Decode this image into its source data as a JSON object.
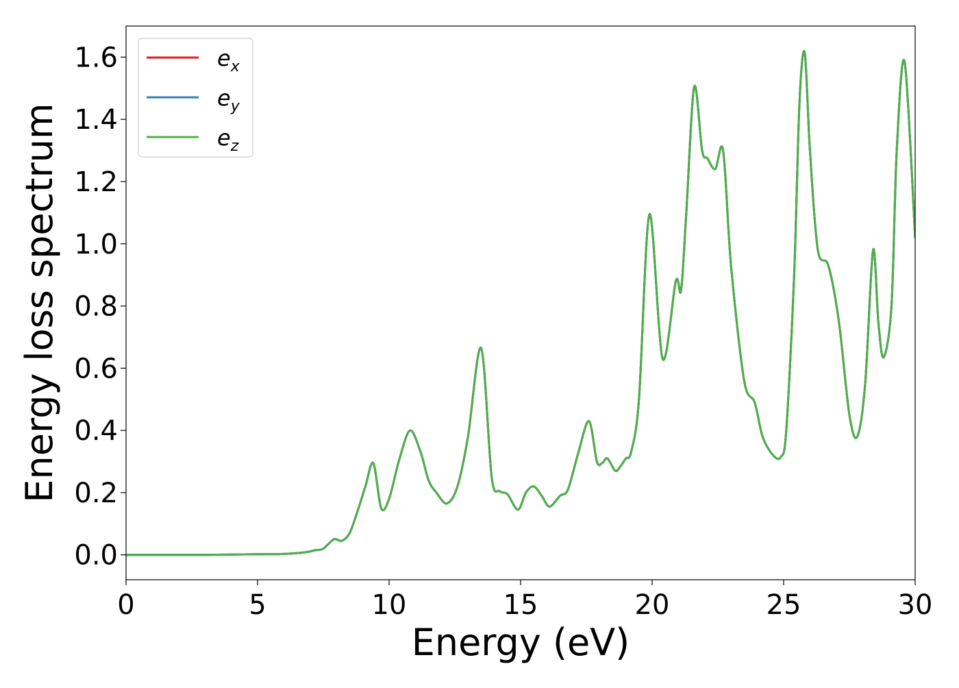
{
  "chart_data": {
    "type": "line",
    "title": "",
    "xlabel": "Energy (eV)",
    "ylabel": "Energy loss spectrum",
    "xlim": [
      0,
      30
    ],
    "ylim": [
      -0.08,
      1.7
    ],
    "xticks": [
      0,
      5,
      10,
      15,
      20,
      25,
      30
    ],
    "xtick_labels": [
      "0",
      "5",
      "10",
      "15",
      "20",
      "25",
      "30"
    ],
    "yticks": [
      0.0,
      0.2,
      0.4,
      0.6,
      0.8,
      1.0,
      1.2,
      1.4,
      1.6
    ],
    "ytick_labels": [
      "0.0",
      "0.2",
      "0.4",
      "0.6",
      "0.8",
      "1.0",
      "1.2",
      "1.4",
      "1.6"
    ],
    "grid": false,
    "legend_position": "top-left",
    "series": [
      {
        "name": "e_x",
        "legend_base": "e",
        "legend_sub": "x",
        "color": "#e41a1c",
        "x": [
          0,
          3,
          5,
          6,
          6.8,
          7.2,
          7.5,
          7.9,
          8.2,
          8.5,
          8.8,
          9.1,
          9.4,
          9.7,
          10.0,
          10.4,
          10.8,
          11.2,
          11.5,
          11.8,
          12.2,
          12.6,
          13.0,
          13.5,
          13.9,
          14.2,
          14.5,
          14.9,
          15.2,
          15.5,
          15.8,
          16.1,
          16.5,
          16.8,
          17.2,
          17.6,
          17.9,
          18.1,
          18.3,
          18.6,
          18.8,
          19.0,
          19.2,
          19.5,
          19.9,
          20.4,
          20.9,
          21.1,
          21.3,
          21.6,
          21.9,
          22.1,
          22.4,
          22.7,
          23.0,
          23.5,
          23.9,
          24.2,
          24.6,
          24.9,
          25.1,
          25.4,
          25.6,
          25.8,
          26.0,
          26.3,
          26.7,
          27.1,
          27.5,
          27.8,
          28.1,
          28.4,
          28.6,
          28.8,
          29.1,
          29.3,
          29.6,
          30.0
        ],
        "y": [
          0.0,
          0.0,
          0.002,
          0.003,
          0.008,
          0.015,
          0.02,
          0.05,
          0.045,
          0.07,
          0.14,
          0.22,
          0.295,
          0.15,
          0.18,
          0.31,
          0.4,
          0.33,
          0.24,
          0.2,
          0.165,
          0.22,
          0.38,
          0.665,
          0.25,
          0.205,
          0.195,
          0.145,
          0.2,
          0.22,
          0.19,
          0.155,
          0.19,
          0.21,
          0.33,
          0.43,
          0.3,
          0.295,
          0.31,
          0.27,
          0.285,
          0.31,
          0.33,
          0.5,
          1.095,
          0.63,
          0.88,
          0.85,
          1.1,
          1.505,
          1.3,
          1.275,
          1.24,
          1.3,
          0.93,
          0.56,
          0.49,
          0.38,
          0.32,
          0.315,
          0.4,
          0.9,
          1.45,
          1.615,
          1.3,
          0.98,
          0.93,
          0.75,
          0.45,
          0.38,
          0.55,
          0.98,
          0.75,
          0.635,
          0.8,
          1.3,
          1.585,
          1.02
        ]
      },
      {
        "name": "e_y",
        "legend_base": "e",
        "legend_sub": "y",
        "color": "#377eb8",
        "x": [
          0,
          3,
          5,
          6,
          6.8,
          7.2,
          7.5,
          7.9,
          8.2,
          8.5,
          8.8,
          9.1,
          9.4,
          9.7,
          10.0,
          10.4,
          10.8,
          11.2,
          11.5,
          11.8,
          12.2,
          12.6,
          13.0,
          13.5,
          13.9,
          14.2,
          14.5,
          14.9,
          15.2,
          15.5,
          15.8,
          16.1,
          16.5,
          16.8,
          17.2,
          17.6,
          17.9,
          18.1,
          18.3,
          18.6,
          18.8,
          19.0,
          19.2,
          19.5,
          19.9,
          20.4,
          20.9,
          21.1,
          21.3,
          21.6,
          21.9,
          22.1,
          22.4,
          22.7,
          23.0,
          23.5,
          23.9,
          24.2,
          24.6,
          24.9,
          25.1,
          25.4,
          25.6,
          25.8,
          26.0,
          26.3,
          26.7,
          27.1,
          27.5,
          27.8,
          28.1,
          28.4,
          28.6,
          28.8,
          29.1,
          29.3,
          29.6,
          30.0
        ],
        "y": [
          0.0,
          0.0,
          0.002,
          0.003,
          0.008,
          0.015,
          0.02,
          0.05,
          0.045,
          0.07,
          0.14,
          0.22,
          0.295,
          0.15,
          0.18,
          0.31,
          0.4,
          0.33,
          0.24,
          0.2,
          0.165,
          0.22,
          0.38,
          0.665,
          0.25,
          0.205,
          0.195,
          0.145,
          0.2,
          0.22,
          0.19,
          0.155,
          0.19,
          0.21,
          0.33,
          0.43,
          0.3,
          0.295,
          0.31,
          0.27,
          0.285,
          0.31,
          0.33,
          0.5,
          1.095,
          0.63,
          0.88,
          0.85,
          1.1,
          1.505,
          1.3,
          1.275,
          1.24,
          1.3,
          0.93,
          0.56,
          0.49,
          0.38,
          0.32,
          0.315,
          0.4,
          0.9,
          1.45,
          1.615,
          1.3,
          0.98,
          0.93,
          0.75,
          0.45,
          0.38,
          0.55,
          0.98,
          0.75,
          0.635,
          0.8,
          1.3,
          1.585,
          1.02
        ]
      },
      {
        "name": "e_z",
        "legend_base": "e",
        "legend_sub": "z",
        "color": "#4daf4a",
        "x": [
          0,
          3,
          5,
          6,
          6.8,
          7.2,
          7.5,
          7.9,
          8.2,
          8.5,
          8.8,
          9.1,
          9.4,
          9.7,
          10.0,
          10.4,
          10.8,
          11.2,
          11.5,
          11.8,
          12.2,
          12.6,
          13.0,
          13.5,
          13.9,
          14.2,
          14.5,
          14.9,
          15.2,
          15.5,
          15.8,
          16.1,
          16.5,
          16.8,
          17.2,
          17.6,
          17.9,
          18.1,
          18.3,
          18.6,
          18.8,
          19.0,
          19.2,
          19.5,
          19.9,
          20.4,
          20.9,
          21.1,
          21.3,
          21.6,
          21.9,
          22.1,
          22.4,
          22.7,
          23.0,
          23.5,
          23.9,
          24.2,
          24.6,
          24.9,
          25.1,
          25.4,
          25.6,
          25.8,
          26.0,
          26.3,
          26.7,
          27.1,
          27.5,
          27.8,
          28.1,
          28.4,
          28.6,
          28.8,
          29.1,
          29.3,
          29.6,
          30.0
        ],
        "y": [
          0.0,
          0.0,
          0.002,
          0.003,
          0.008,
          0.015,
          0.02,
          0.05,
          0.045,
          0.07,
          0.14,
          0.22,
          0.295,
          0.15,
          0.18,
          0.31,
          0.4,
          0.33,
          0.24,
          0.2,
          0.165,
          0.22,
          0.38,
          0.665,
          0.25,
          0.205,
          0.195,
          0.145,
          0.2,
          0.22,
          0.19,
          0.155,
          0.19,
          0.21,
          0.33,
          0.43,
          0.3,
          0.295,
          0.31,
          0.27,
          0.285,
          0.31,
          0.33,
          0.5,
          1.095,
          0.63,
          0.88,
          0.85,
          1.1,
          1.505,
          1.3,
          1.275,
          1.24,
          1.3,
          0.93,
          0.56,
          0.49,
          0.38,
          0.32,
          0.315,
          0.4,
          0.9,
          1.45,
          1.615,
          1.3,
          0.98,
          0.93,
          0.75,
          0.45,
          0.38,
          0.55,
          0.98,
          0.75,
          0.635,
          0.8,
          1.3,
          1.585,
          1.02
        ]
      }
    ]
  }
}
